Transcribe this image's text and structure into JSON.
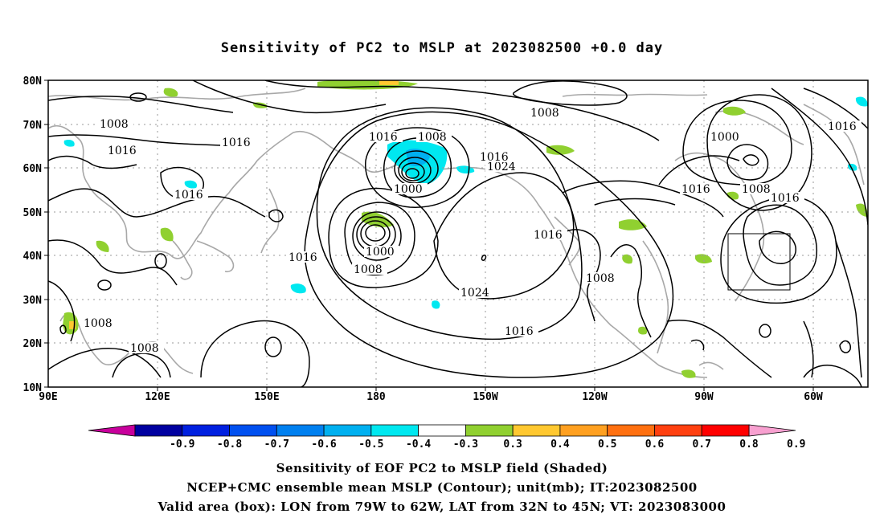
{
  "title": "Sensitivity of PC2 to MSLP at 2023082500 +0.0 day",
  "map": {
    "lat_labels": [
      "80N",
      "70N",
      "60N",
      "50N",
      "40N",
      "30N",
      "20N",
      "10N"
    ],
    "lon_labels": [
      "90E",
      "120E",
      "150E",
      "180",
      "150W",
      "120W",
      "90W",
      "60W"
    ],
    "contour_labels": [
      {
        "text": "1008",
        "id": "c1"
      },
      {
        "text": "1016",
        "id": "c2"
      },
      {
        "text": "1016",
        "id": "c3"
      },
      {
        "text": "1016",
        "id": "c4"
      },
      {
        "text": "1016",
        "id": "c5"
      },
      {
        "text": "1008",
        "id": "c6"
      },
      {
        "text": "1000",
        "id": "c7"
      },
      {
        "text": "1016",
        "id": "c8"
      },
      {
        "text": "1024",
        "id": "c9"
      },
      {
        "text": "1000",
        "id": "c10"
      },
      {
        "text": "1008",
        "id": "c11"
      },
      {
        "text": "1016",
        "id": "c12"
      },
      {
        "text": "1024",
        "id": "c13"
      },
      {
        "text": "1016",
        "id": "c14"
      },
      {
        "text": "1008",
        "id": "c15"
      },
      {
        "text": "1016",
        "id": "c16"
      },
      {
        "text": "1008",
        "id": "c17"
      },
      {
        "text": "1000",
        "id": "c18"
      },
      {
        "text": "1016",
        "id": "c19"
      },
      {
        "text": "1008",
        "id": "c20"
      },
      {
        "text": "1016",
        "id": "c21"
      },
      {
        "text": "1016",
        "id": "c22"
      },
      {
        "text": "1008",
        "id": "c23"
      },
      {
        "text": "1008",
        "id": "c24"
      }
    ],
    "valid_box": {
      "lon_min": -79,
      "lon_max": -62,
      "lat_min": 32,
      "lat_max": 45
    }
  },
  "colorbar": {
    "labels": [
      "-0.9",
      "-0.8",
      "-0.7",
      "-0.6",
      "-0.5",
      "-0.4",
      "-0.3",
      "0.3",
      "0.4",
      "0.5",
      "0.6",
      "0.7",
      "0.8",
      "0.9"
    ],
    "colors": [
      "#0000a0",
      "#0020e0",
      "#0050f0",
      "#0080f0",
      "#00b0f0",
      "#00e8f0",
      "#ffffff",
      "#90d030",
      "#ffc830",
      "#ffa020",
      "#ff7010",
      "#ff4010",
      "#ff0000"
    ],
    "left_end_color": "#c8009c",
    "right_end_color": "#f8a0d0"
  },
  "captions": {
    "line1": "Sensitivity of EOF PC2 to MSLP field (Shaded)",
    "line2": "NCEP+CMC ensemble mean MSLP (Contour); unit(mb); IT:2023082500",
    "line3": "Valid area (box): LON from 79W to 62W, LAT from 32N to 45N; VT: 2023083000"
  }
}
